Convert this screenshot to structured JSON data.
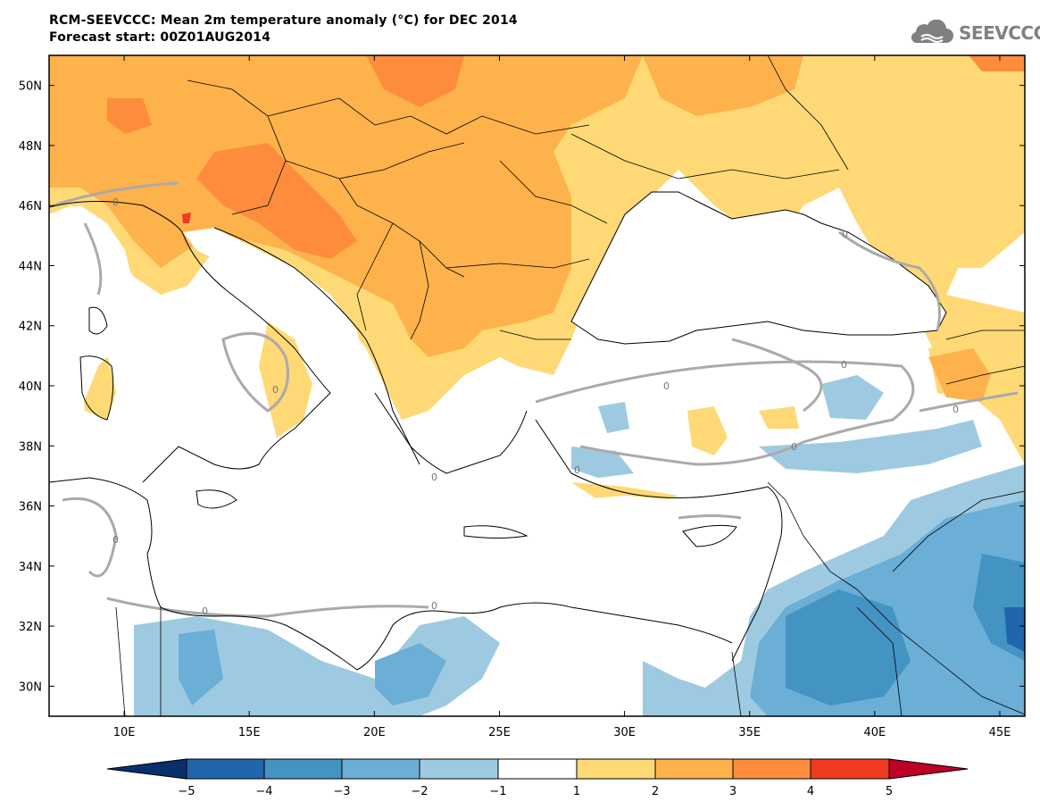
{
  "title": {
    "line1": "RCM-SEEVCCC: Mean 2m temperature anomaly (°C) for DEC 2014",
    "line2": "Forecast start: 00Z01AUG2014"
  },
  "logo": {
    "text": "SEEVCCC",
    "icon": "cloud-icon"
  },
  "map": {
    "lon_range": [
      7,
      46
    ],
    "lat_range": [
      29,
      51
    ],
    "lat_ticks": [
      "30N",
      "32N",
      "34N",
      "36N",
      "38N",
      "40N",
      "42N",
      "44N",
      "46N",
      "48N",
      "50N"
    ],
    "lon_ticks": [
      "10E",
      "15E",
      "20E",
      "25E",
      "30E",
      "35E",
      "40E",
      "45E"
    ],
    "contour_label": "0"
  },
  "colorbar": {
    "labels": [
      "−5",
      "−4",
      "−3",
      "−2",
      "−1",
      "1",
      "2",
      "3",
      "4",
      "5"
    ],
    "colors": [
      "#08306b",
      "#2166ac",
      "#4393c3",
      "#6baed6",
      "#9ecae1",
      "#ffffff",
      "#fed976",
      "#feb24c",
      "#fd8d3c",
      "#f03b20",
      "#bd0026"
    ]
  }
}
